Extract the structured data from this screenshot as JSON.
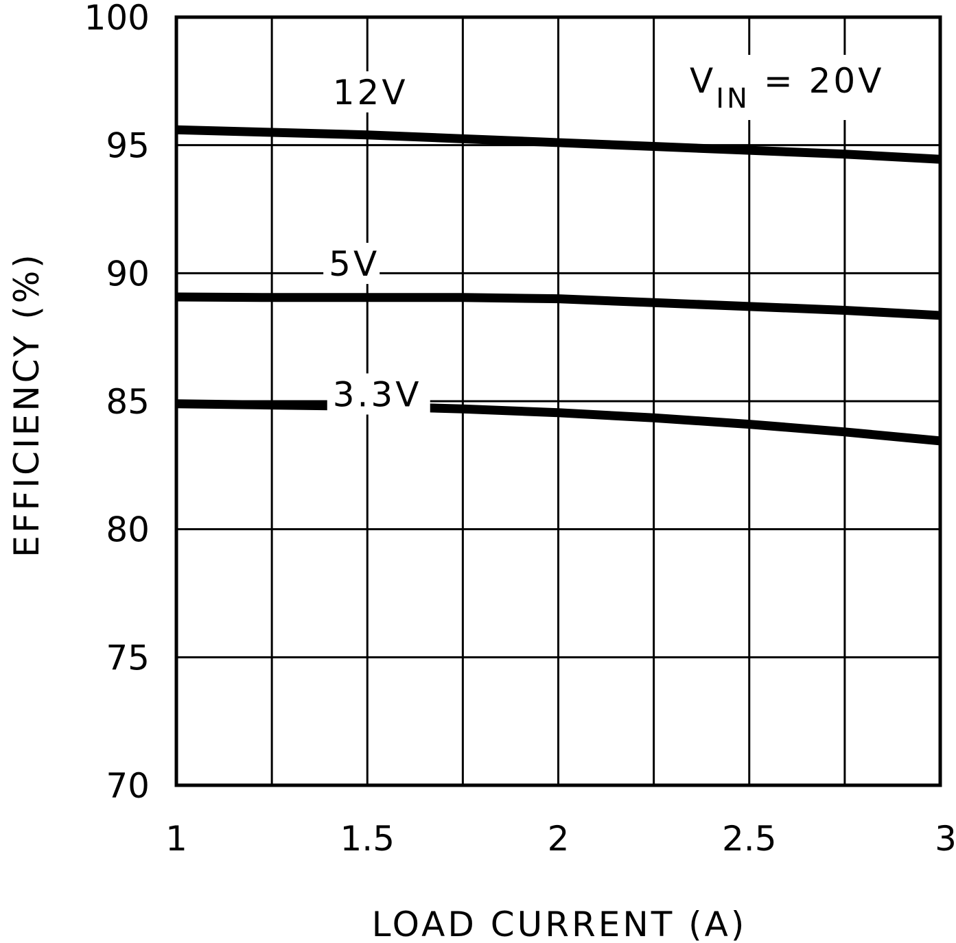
{
  "chart_data": {
    "type": "line",
    "title": "",
    "annotation": {
      "main": "V",
      "sub": "IN",
      "rest": " = 20V"
    },
    "xlabel": "LOAD CURRENT (A)",
    "ylabel": "EFFICIENCY (%)",
    "xlim": [
      1,
      3
    ],
    "ylim": [
      70,
      100
    ],
    "xticks": [
      1,
      1.5,
      2,
      2.5,
      3
    ],
    "xtick_labels": [
      "1",
      "1.5",
      "2",
      "2.5",
      "3"
    ],
    "yticks": [
      70,
      75,
      80,
      85,
      90,
      95,
      100
    ],
    "ytick_labels": [
      "70",
      "75",
      "80",
      "85",
      "90",
      "95",
      "100"
    ],
    "grid": true,
    "x_minor_grid_step": 0.25,
    "legend": "inline labels",
    "series": [
      {
        "name": "12V",
        "x": [
          1,
          1.25,
          1.5,
          1.75,
          2,
          2.25,
          2.5,
          2.75,
          3
        ],
        "values": [
          95.6,
          95.5,
          95.4,
          95.25,
          95.1,
          94.95,
          94.8,
          94.65,
          94.45
        ]
      },
      {
        "name": "5V",
        "x": [
          1,
          1.25,
          1.5,
          1.75,
          2,
          2.25,
          2.5,
          2.75,
          3
        ],
        "values": [
          89.07,
          89.05,
          89.05,
          89.05,
          89.0,
          88.85,
          88.7,
          88.55,
          88.35
        ]
      },
      {
        "name": "3.3V",
        "x": [
          1,
          1.25,
          1.5,
          1.75,
          2,
          2.25,
          2.5,
          2.75,
          3
        ],
        "values": [
          84.9,
          84.85,
          84.8,
          84.7,
          84.55,
          84.35,
          84.1,
          83.8,
          83.45
        ]
      }
    ],
    "series_labels": [
      {
        "text": "12V",
        "x": 1.42,
        "y": 96.6
      },
      {
        "text": "5V",
        "x": 1.41,
        "y": 89.9
      },
      {
        "text": "3.3V",
        "x": 1.42,
        "y": 84.8
      }
    ]
  }
}
